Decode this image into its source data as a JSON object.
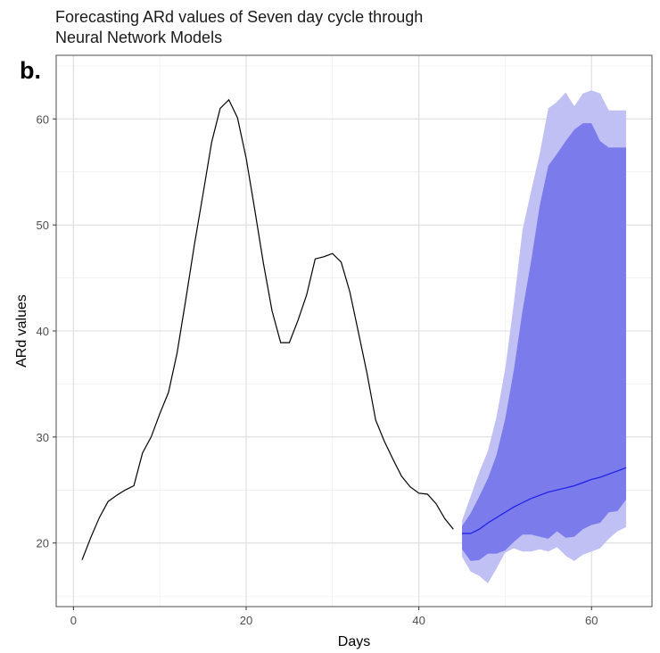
{
  "chart_data": {
    "type": "line",
    "title": "Forecasting ARd values of Seven day cycle through\nNeural Network Models",
    "panel_label": "b.",
    "xlabel": "Days",
    "ylabel": "ARd values",
    "xlim": [
      -2,
      67
    ],
    "ylim": [
      14,
      66
    ],
    "x_ticks": [
      0,
      20,
      40,
      60
    ],
    "y_ticks": [
      20,
      30,
      40,
      50,
      60
    ],
    "grid": true,
    "colors": {
      "observed": "#000000",
      "forecast_line": "#1d1de6",
      "band80": "#7b7bec",
      "band95": "#c0c0f4"
    },
    "observed": {
      "x": [
        1,
        2,
        3,
        4,
        5,
        6,
        7,
        8,
        9,
        10,
        11,
        12,
        13,
        14,
        15,
        16,
        17,
        18,
        19,
        20,
        21,
        22,
        23,
        24,
        25,
        26,
        27,
        28,
        29,
        30,
        31,
        32,
        33,
        34,
        35,
        36,
        37,
        38,
        39,
        40,
        41,
        42,
        43,
        44
      ],
      "y": [
        18.4,
        20.5,
        22.4,
        23.9,
        24.5,
        25.0,
        25.4,
        28.5,
        30.0,
        32.2,
        34.2,
        37.9,
        42.9,
        48.1,
        52.9,
        57.8,
        61.0,
        61.8,
        60.1,
        56.3,
        51.4,
        46.4,
        41.9,
        38.9,
        38.9,
        41.0,
        43.4,
        46.8,
        47.0,
        47.3,
        46.5,
        43.7,
        39.9,
        36.0,
        31.6,
        29.6,
        27.9,
        26.3,
        25.3,
        24.7,
        24.6,
        23.7,
        22.3,
        21.3
      ]
    },
    "forecast": {
      "x": [
        45,
        46,
        47,
        48,
        49,
        50,
        51,
        52,
        53,
        54,
        55,
        56,
        57,
        58,
        59,
        60,
        61,
        62,
        63,
        64
      ],
      "mean": [
        20.9,
        20.9,
        21.3,
        21.9,
        22.4,
        22.9,
        23.4,
        23.8,
        24.2,
        24.5,
        24.8,
        25.0,
        25.2,
        25.4,
        25.7,
        26.0,
        26.2,
        26.5,
        26.8,
        27.1
      ],
      "lo80": [
        19.4,
        18.3,
        18.4,
        19.0,
        19.0,
        19.3,
        20.1,
        20.8,
        20.8,
        20.6,
        20.4,
        21.1,
        20.5,
        20.6,
        21.3,
        21.7,
        21.9,
        22.9,
        23.0,
        24.1
      ],
      "hi80": [
        21.6,
        22.8,
        24.4,
        26.1,
        28.3,
        31.7,
        36.3,
        41.9,
        46.6,
        51.8,
        55.6,
        56.7,
        57.9,
        59.0,
        59.6,
        59.6,
        57.9,
        57.3,
        57.3,
        57.3
      ],
      "lo95": [
        18.7,
        17.3,
        16.9,
        16.2,
        17.6,
        19.1,
        19.5,
        19.2,
        19.2,
        19.4,
        19.2,
        19.6,
        18.8,
        18.3,
        18.9,
        19.2,
        19.5,
        20.4,
        21.1,
        21.5
      ],
      "hi95": [
        22.1,
        24.4,
        26.7,
        28.7,
        31.9,
        36.4,
        42.6,
        49.5,
        53.2,
        56.7,
        61.0,
        61.6,
        62.5,
        61.2,
        62.4,
        62.7,
        62.4,
        60.8,
        60.8,
        60.8
      ]
    }
  }
}
